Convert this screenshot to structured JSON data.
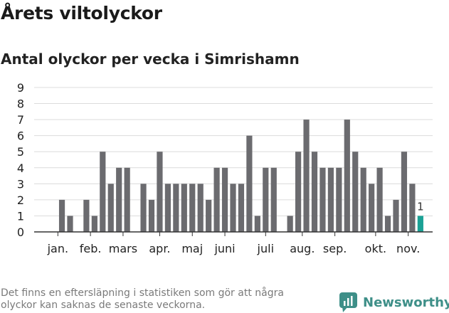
{
  "header": {
    "title": "Årets viltolyckor",
    "subtitle": "Antal olyckor per vecka i Simrishamn"
  },
  "footer": {
    "note": "Det finns en eftersläpning i statistiken som gör att några olyckor kan saknas de senaste veckorna.",
    "brand": "Newsworthy",
    "brand_icon": "bar-chart-speech-bubble-icon",
    "brand_color": "#3e8f88"
  },
  "chart_data": {
    "type": "bar",
    "title": "Antal olyckor per vecka i Simrishamn",
    "xlabel": "",
    "ylabel": "",
    "ylim": [
      0,
      9
    ],
    "yticks": [
      0,
      1,
      2,
      3,
      4,
      5,
      6,
      7,
      8,
      9
    ],
    "grid": true,
    "bar_color": "#6b6b6f",
    "highlight_color": "#1aa195",
    "weeks": [
      1,
      2,
      3,
      4,
      5,
      6,
      7,
      8,
      9,
      10,
      11,
      12,
      13,
      14,
      15,
      16,
      17,
      18,
      19,
      20,
      21,
      22,
      23,
      24,
      25,
      26,
      27,
      28,
      29,
      30,
      31,
      32,
      33,
      34,
      35,
      36,
      37,
      38,
      39,
      40,
      41,
      42,
      43,
      44,
      45,
      46
    ],
    "values": [
      0,
      2,
      1,
      0,
      2,
      1,
      5,
      3,
      4,
      4,
      0,
      3,
      2,
      5,
      3,
      3,
      3,
      3,
      3,
      2,
      4,
      4,
      3,
      3,
      6,
      1,
      4,
      4,
      0,
      1,
      5,
      7,
      5,
      4,
      4,
      4,
      7,
      5,
      4,
      3,
      4,
      1,
      2,
      5,
      3,
      1
    ],
    "highlight_index": 45,
    "data_labels": [
      {
        "index": 45,
        "text": "1"
      }
    ],
    "x_month_labels": [
      {
        "label": "jan.",
        "week": 1.5
      },
      {
        "label": "feb.",
        "week": 5.5
      },
      {
        "label": "mars",
        "week": 9.5
      },
      {
        "label": "apr.",
        "week": 14
      },
      {
        "label": "maj",
        "week": 18
      },
      {
        "label": "juni",
        "week": 22
      },
      {
        "label": "juli",
        "week": 27
      },
      {
        "label": "aug.",
        "week": 31.5
      },
      {
        "label": "sep.",
        "week": 35.5
      },
      {
        "label": "okt.",
        "week": 40.5
      },
      {
        "label": "nov.",
        "week": 44.5
      }
    ]
  }
}
